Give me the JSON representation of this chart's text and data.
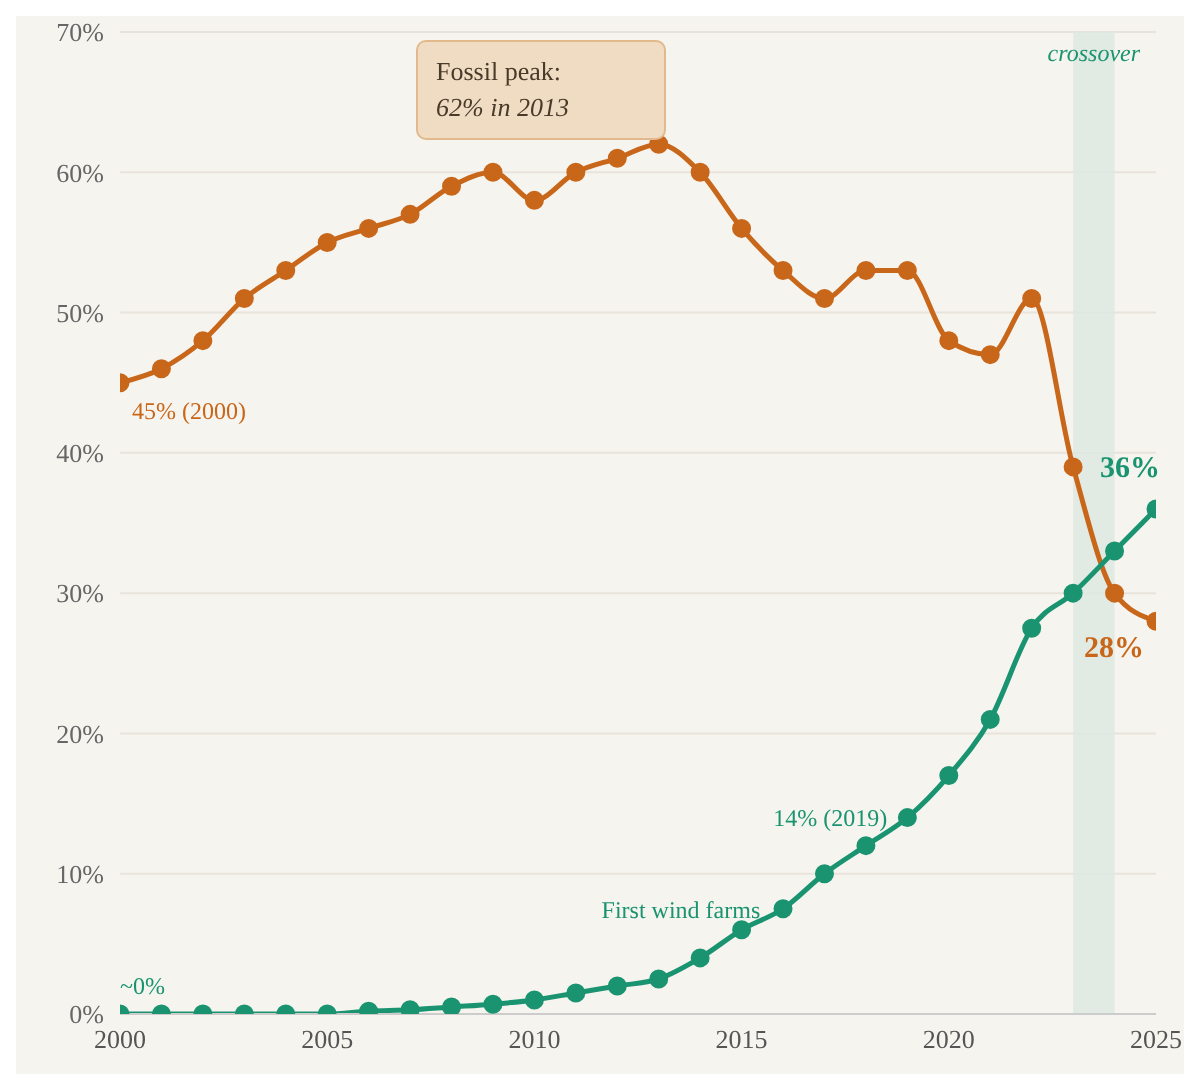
{
  "chart_data": {
    "type": "line",
    "x": [
      2000,
      2001,
      2002,
      2003,
      2004,
      2005,
      2006,
      2007,
      2008,
      2009,
      2010,
      2011,
      2012,
      2013,
      2014,
      2015,
      2016,
      2017,
      2018,
      2019,
      2020,
      2021,
      2022,
      2023,
      2024,
      2025
    ],
    "series": [
      {
        "color": "#c8661a",
        "values": [
          45,
          46,
          48,
          51,
          53,
          55,
          56,
          57,
          59,
          60,
          58,
          60,
          61,
          62,
          60,
          56,
          53,
          51,
          53,
          53,
          48,
          47,
          51,
          39,
          30,
          28
        ]
      },
      {
        "color": "#1a9470",
        "values": [
          0,
          0,
          0,
          0,
          0,
          0,
          0.2,
          0.3,
          0.5,
          0.7,
          1,
          1.5,
          2,
          2.5,
          4,
          6,
          7.5,
          10,
          12,
          14,
          17,
          21,
          27.5,
          30,
          33,
          36
        ]
      }
    ],
    "xlim": [
      2000,
      2025
    ],
    "xticks": [
      2000,
      2005,
      2010,
      2015,
      2020,
      2025
    ],
    "ylim": [
      0,
      70
    ],
    "yticks": [
      {
        "value": 0,
        "label": "0%"
      },
      {
        "value": 10,
        "label": "10%"
      },
      {
        "value": 20,
        "label": "20%"
      },
      {
        "value": 30,
        "label": "30%"
      },
      {
        "value": 40,
        "label": "40%"
      },
      {
        "value": 50,
        "label": "50%"
      },
      {
        "value": 60,
        "label": "60%"
      },
      {
        "value": 70,
        "label": "70%"
      }
    ],
    "grid": "y",
    "marker": "circle",
    "line_style": "solid",
    "legend": false,
    "bands": [
      {
        "axis": "x",
        "from": 2023,
        "to": 2024,
        "label": "crossover",
        "color": "#dce9e1"
      }
    ],
    "annotations": [
      "Fossil peak:\n62% in 2013",
      {
        "text": "45% (2000)",
        "x": 2000,
        "y": 45
      },
      {
        "text": "~0%",
        "x": 2000,
        "y": 0
      },
      {
        "text": "First wind farms",
        "x": 2015,
        "y": 6
      },
      {
        "text": "14% (2019)",
        "x": 2019,
        "y": 14
      },
      {
        "text": "36%",
        "x": 2025,
        "y": 36
      },
      {
        "text": "28%",
        "x": 2025,
        "y": 28
      }
    ]
  }
}
